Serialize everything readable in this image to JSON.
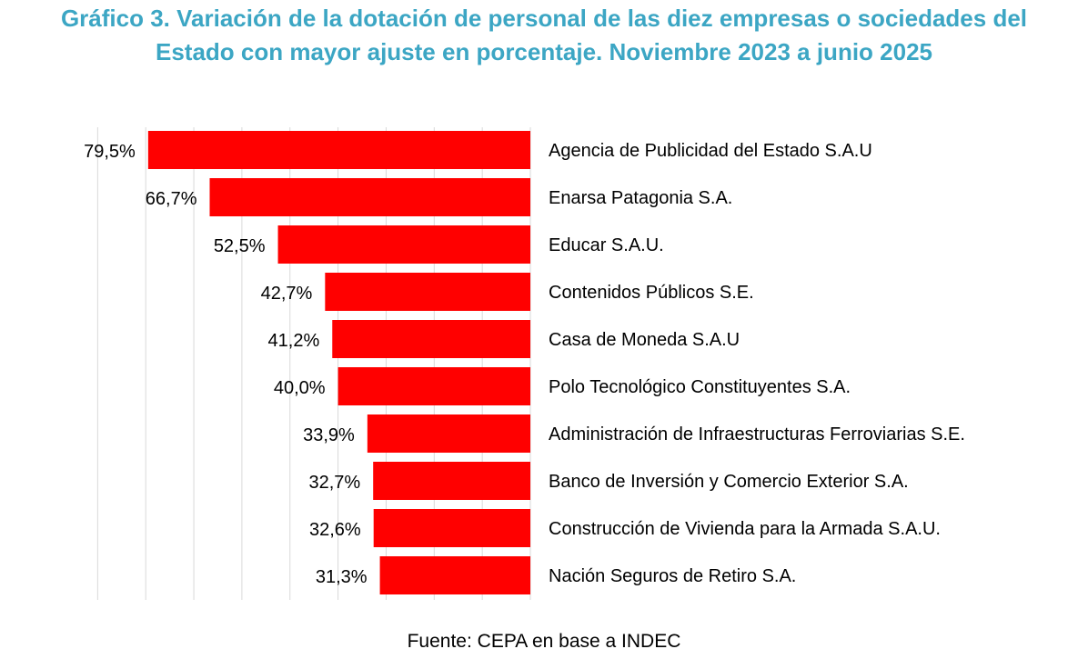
{
  "chart_data": {
    "type": "bar",
    "orientation": "horizontal",
    "title": "Gráfico 3. Variación de la dotación de personal de las diez empresas o sociedades del Estado con mayor ajuste en porcentaje. Noviembre 2023 a junio 2025",
    "categories": [
      "Agencia de Publicidad del Estado S.A.U",
      "Enarsa Patagonia S.A.",
      "Educar S.A.U.",
      "Contenidos Públicos S.E.",
      "Casa de Moneda S.A.U",
      "Polo Tecnológico Constituyentes S.A.",
      "Administración de Infraestructuras Ferroviarias S.E.",
      "Banco de Inversión y Comercio Exterior S.A.",
      "Construcción de Vivienda para la Armada S.A.U.",
      "Nación Seguros de Retiro S.A."
    ],
    "values": [
      79.5,
      66.7,
      52.5,
      42.7,
      41.2,
      40.0,
      33.9,
      32.7,
      32.6,
      31.3
    ],
    "data_labels": [
      "79,5%",
      "66,7%",
      "52,5%",
      "42,7%",
      "41,2%",
      "40,0%",
      "33,9%",
      "32,7%",
      "32,6%",
      "31,3%"
    ],
    "xlim": [
      0,
      90
    ],
    "grid": true,
    "legend": "none",
    "bar_color": "#FF0000",
    "title_color": "#3CA6C4",
    "grid_color": "#D9D9D9"
  },
  "source": "Fuente: CEPA en base a INDEC"
}
